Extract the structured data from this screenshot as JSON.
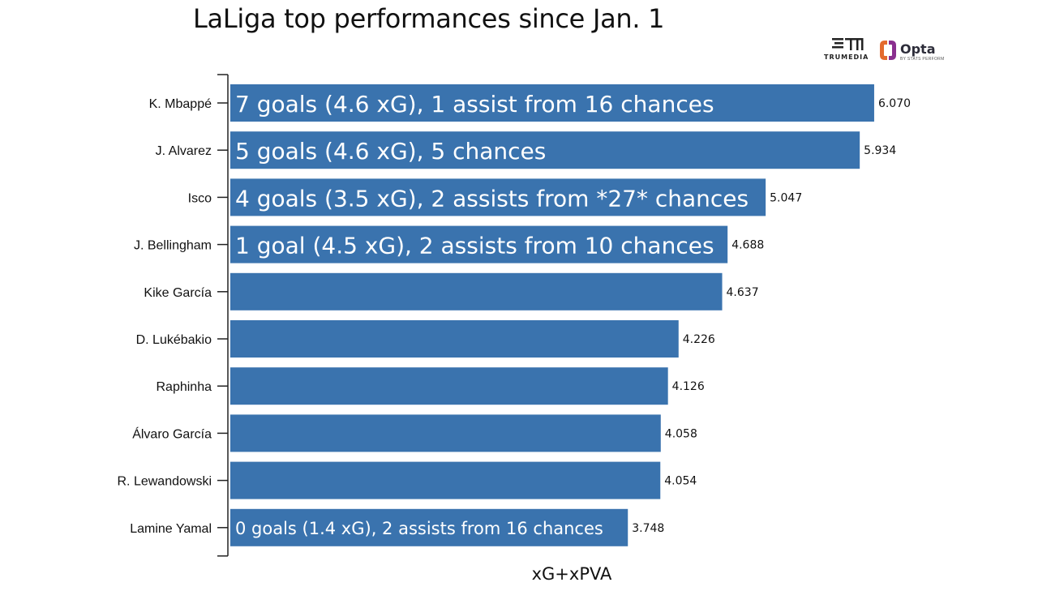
{
  "chart_data": {
    "type": "bar",
    "orientation": "horizontal",
    "title": "LaLiga top performances since Jan. 1",
    "xlabel": "xG+xPVA",
    "ylabel": "",
    "xlim": [
      0,
      6.5
    ],
    "grid": false,
    "bar_color": "#3a73ae",
    "categories": [
      "K. Mbappé",
      "J. Alvarez",
      "Isco",
      "J. Bellingham",
      "Kike García",
      "D. Lukébakio",
      "Raphinha",
      "Álvaro García",
      "R. Lewandowski",
      "Lamine Yamal"
    ],
    "values": [
      6.07,
      5.934,
      5.047,
      4.688,
      4.637,
      4.226,
      4.126,
      4.058,
      4.054,
      3.748
    ],
    "value_labels": [
      "6.070",
      "5.934",
      "5.047",
      "4.688",
      "4.637",
      "4.226",
      "4.126",
      "4.058",
      "4.054",
      "3.748"
    ],
    "annotations": [
      "7 goals (4.6 xG), 1 assist from 16 chances",
      "5 goals (4.6 xG), 5 chances",
      "4 goals (3.5 xG), 2 assists from *27* chances",
      "1 goal (4.5 xG), 2 assists from 10 chances",
      "",
      "",
      "",
      "",
      "",
      "0 goals (1.4 xG), 2 assists from 16 chances"
    ]
  },
  "logos": {
    "trumedia": "TRUMEDIA",
    "opta": "Opta",
    "opta_sub": "BY STATS PERFORM"
  }
}
